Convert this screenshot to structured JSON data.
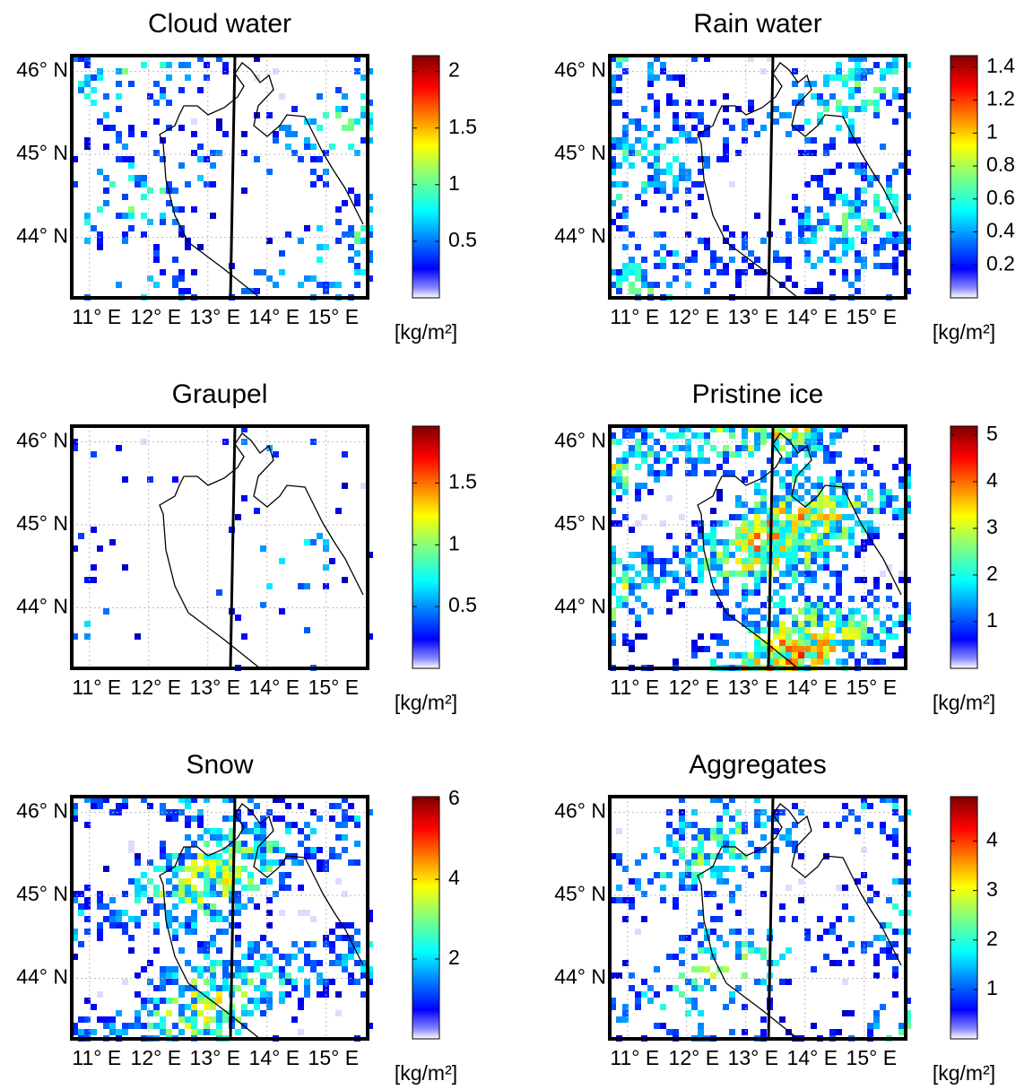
{
  "chart_data": [
    {
      "type": "map",
      "title": "Cloud water",
      "xlim": [
        10.7,
        15.7
      ],
      "ylim": [
        43.27,
        46.19
      ],
      "xticks": [
        {
          "value": 11,
          "label": "11° E"
        },
        {
          "value": 12,
          "label": "12° E"
        },
        {
          "value": 13,
          "label": "13° E"
        },
        {
          "value": 14,
          "label": "14° E"
        },
        {
          "value": 15,
          "label": "15° E"
        }
      ],
      "yticks": [
        {
          "value": 44,
          "label": "44° N"
        },
        {
          "value": 45,
          "label": "45° N"
        },
        {
          "value": 46,
          "label": "46° N"
        }
      ],
      "colorbar": {
        "lim": [
          0,
          2.14
        ],
        "ticks": [
          0.5,
          1,
          1.5,
          2
        ],
        "label": "[kg/m²]"
      }
    },
    {
      "type": "map",
      "title": "Rain water",
      "xlim": [
        10.7,
        15.7
      ],
      "ylim": [
        43.27,
        46.19
      ],
      "xticks": [
        {
          "value": 11,
          "label": "11° E"
        },
        {
          "value": 12,
          "label": "12° E"
        },
        {
          "value": 13,
          "label": "13° E"
        },
        {
          "value": 14,
          "label": "14° E"
        },
        {
          "value": 15,
          "label": "15° E"
        }
      ],
      "yticks": [
        {
          "value": 44,
          "label": "44° N"
        },
        {
          "value": 45,
          "label": "45° N"
        },
        {
          "value": 46,
          "label": "46° N"
        }
      ],
      "colorbar": {
        "lim": [
          0,
          1.47
        ],
        "ticks": [
          0.2,
          0.4,
          0.6,
          0.8,
          1,
          1.2,
          1.4
        ],
        "label": "[kg/m²]"
      }
    },
    {
      "type": "map",
      "title": "Graupel",
      "xlim": [
        10.7,
        15.7
      ],
      "ylim": [
        43.27,
        46.19
      ],
      "xticks": [
        {
          "value": 11,
          "label": "11° E"
        },
        {
          "value": 12,
          "label": "12° E"
        },
        {
          "value": 13,
          "label": "13° E"
        },
        {
          "value": 14,
          "label": "14° E"
        },
        {
          "value": 15,
          "label": "15° E"
        }
      ],
      "yticks": [
        {
          "value": 44,
          "label": "44° N"
        },
        {
          "value": 45,
          "label": "45° N"
        },
        {
          "value": 46,
          "label": "46° N"
        }
      ],
      "colorbar": {
        "lim": [
          0,
          1.96
        ],
        "ticks": [
          0.5,
          1,
          1.5
        ],
        "label": "[kg/m²]"
      }
    },
    {
      "type": "map",
      "title": "Pristine ice",
      "xlim": [
        10.7,
        15.7
      ],
      "ylim": [
        43.27,
        46.19
      ],
      "xticks": [
        {
          "value": 11,
          "label": "11° E"
        },
        {
          "value": 12,
          "label": "12° E"
        },
        {
          "value": 13,
          "label": "13° E"
        },
        {
          "value": 14,
          "label": "14° E"
        },
        {
          "value": 15,
          "label": "15° E"
        }
      ],
      "yticks": [
        {
          "value": 44,
          "label": "44° N"
        },
        {
          "value": 45,
          "label": "45° N"
        },
        {
          "value": 46,
          "label": "46° N"
        }
      ],
      "colorbar": {
        "lim": [
          0,
          5.19
        ],
        "ticks": [
          1,
          2,
          3,
          4,
          5
        ],
        "label": "[kg/m²]"
      }
    },
    {
      "type": "map",
      "title": "Snow",
      "xlim": [
        10.7,
        15.7
      ],
      "ylim": [
        43.27,
        46.19
      ],
      "xticks": [
        {
          "value": 11,
          "label": "11° E"
        },
        {
          "value": 12,
          "label": "12° E"
        },
        {
          "value": 13,
          "label": "13° E"
        },
        {
          "value": 14,
          "label": "14° E"
        },
        {
          "value": 15,
          "label": "15° E"
        }
      ],
      "yticks": [
        {
          "value": 44,
          "label": "44° N"
        },
        {
          "value": 45,
          "label": "45° N"
        },
        {
          "value": 46,
          "label": "46° N"
        }
      ],
      "colorbar": {
        "lim": [
          0,
          6.07
        ],
        "ticks": [
          2,
          4,
          6
        ],
        "label": "[kg/m²]"
      }
    },
    {
      "type": "map",
      "title": "Aggregates",
      "xlim": [
        10.7,
        15.7
      ],
      "ylim": [
        43.27,
        46.19
      ],
      "xticks": [
        {
          "value": 11,
          "label": "11° E"
        },
        {
          "value": 12,
          "label": "12° E"
        },
        {
          "value": 13,
          "label": "13° E"
        },
        {
          "value": 14,
          "label": "14° E"
        },
        {
          "value": 15,
          "label": "15° E"
        }
      ],
      "yticks": [
        {
          "value": 44,
          "label": "44° N"
        },
        {
          "value": 45,
          "label": "45° N"
        },
        {
          "value": 46,
          "label": "46° N"
        }
      ],
      "colorbar": {
        "lim": [
          0,
          4.9
        ],
        "ticks": [
          1,
          2,
          3,
          4
        ],
        "label": "[kg/m²]"
      }
    }
  ]
}
